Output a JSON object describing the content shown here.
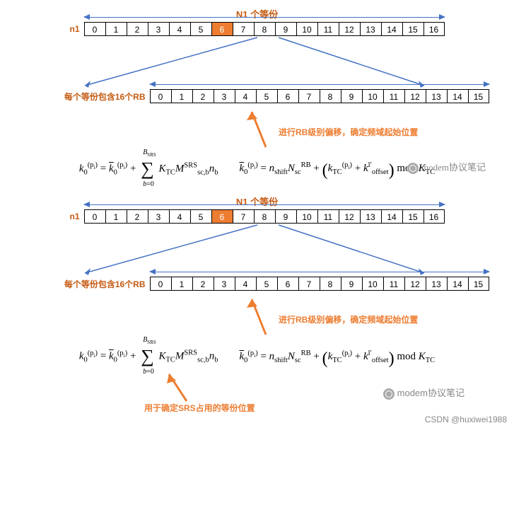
{
  "colors": {
    "accent_orange": "#ed7d31",
    "text_orange": "#c55a11",
    "arrow_blue": "#4472c4",
    "cell_border": "#000000",
    "bg": "#ffffff",
    "watermark": "#888888"
  },
  "section1": {
    "title": "N1 个等份",
    "row1": {
      "label": "n1",
      "cells": [
        "0",
        "1",
        "2",
        "3",
        "4",
        "5",
        "6",
        "7",
        "8",
        "9",
        "10",
        "11",
        "12",
        "13",
        "14",
        "15",
        "16"
      ],
      "highlight_index": 6
    },
    "row2": {
      "label": "每个等份包含16个RB",
      "cells": [
        "0",
        "1",
        "2",
        "3",
        "4",
        "5",
        "6",
        "7",
        "8",
        "9",
        "10",
        "11",
        "12",
        "13",
        "14",
        "15"
      ],
      "highlight_index": -1
    },
    "annotation": "进行RB级别偏移，确定频域起始位置",
    "watermark": "modem协议笔记"
  },
  "section2": {
    "title": "N1 个等份",
    "row1": {
      "label": "n1",
      "cells": [
        "0",
        "1",
        "2",
        "3",
        "4",
        "5",
        "6",
        "7",
        "8",
        "9",
        "10",
        "11",
        "12",
        "13",
        "14",
        "15",
        "16"
      ],
      "highlight_index": 6
    },
    "row2": {
      "label": "每个等份包含16个RB",
      "cells": [
        "0",
        "1",
        "2",
        "3",
        "4",
        "5",
        "6",
        "7",
        "8",
        "9",
        "10",
        "11",
        "12",
        "13",
        "14",
        "15"
      ],
      "highlight_index": -1
    },
    "annotation": "进行RB级别偏移，确定频域起始位置",
    "annotation2": "用于确定SRS占用的等份位置",
    "watermark": "modem协议笔记",
    "footer": "CSDN @huxiwei1988"
  },
  "formula": {
    "left": "k₀^(pᵢ) = k̄₀^(pᵢ) + Σ_{b=0}^{B_SRS} K_TC M_{sc,b}^{SRS} n_b",
    "right": "k̄₀^(pᵢ) = n_shift N_sc^RB + (k_TC^(pᵢ) + k_offset^{l′}) mod K_TC"
  }
}
